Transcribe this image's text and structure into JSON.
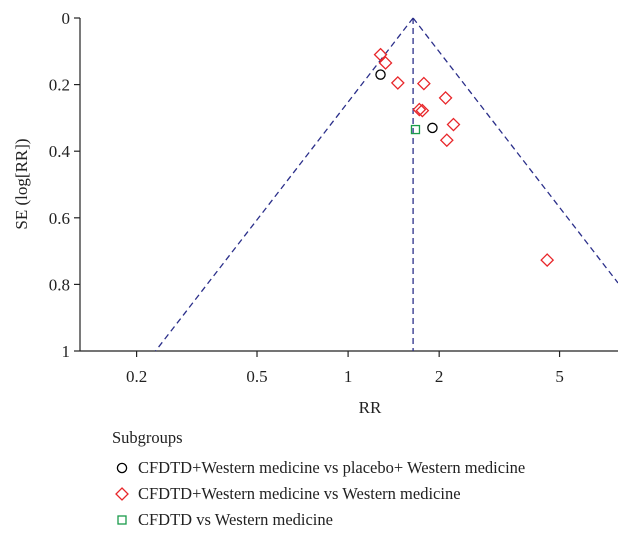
{
  "chart_data": {
    "type": "scatter",
    "subtype": "funnel-plot",
    "xlabel": "RR",
    "ylabel": "SE (log[RR])",
    "x_scale": "log",
    "xlim": [
      0.13,
      7.8
    ],
    "x_ticks": [
      0.2,
      0.5,
      1,
      2,
      5
    ],
    "x_tick_labels": [
      "0.2",
      "0.5",
      "1",
      "2",
      "5"
    ],
    "ylim": [
      0,
      1
    ],
    "y_inverted": true,
    "y_ticks": [
      0,
      0.2,
      0.4,
      0.6,
      0.8,
      1
    ],
    "y_tick_labels": [
      "0",
      "0.2",
      "0.4",
      "0.6",
      "0.8",
      "1"
    ],
    "grid": false,
    "pooled_rr": 1.64,
    "funnel_line_style": "dashed",
    "legend_title": "Subgroups",
    "legend_position": "bottom",
    "series": [
      {
        "name": "CFDTD+Western medicine vs placebo+ Western medicine",
        "marker": "circle",
        "color": "#000000",
        "points": [
          {
            "x": 1.28,
            "y": 0.17
          },
          {
            "x": 1.9,
            "y": 0.33
          }
        ]
      },
      {
        "name": "CFDTD+Western medicine vs Western medicine",
        "marker": "diamond",
        "color": "#e8262a",
        "points": [
          {
            "x": 1.28,
            "y": 0.11
          },
          {
            "x": 1.33,
            "y": 0.135
          },
          {
            "x": 1.46,
            "y": 0.195
          },
          {
            "x": 1.78,
            "y": 0.197
          },
          {
            "x": 2.1,
            "y": 0.24
          },
          {
            "x": 1.72,
            "y": 0.275
          },
          {
            "x": 1.76,
            "y": 0.278
          },
          {
            "x": 2.23,
            "y": 0.32
          },
          {
            "x": 2.12,
            "y": 0.367
          },
          {
            "x": 4.55,
            "y": 0.727
          }
        ]
      },
      {
        "name": "CFDTD vs Western medicine",
        "marker": "square",
        "color": "#1a9b4a",
        "points": [
          {
            "x": 1.67,
            "y": 0.335
          }
        ]
      }
    ]
  }
}
